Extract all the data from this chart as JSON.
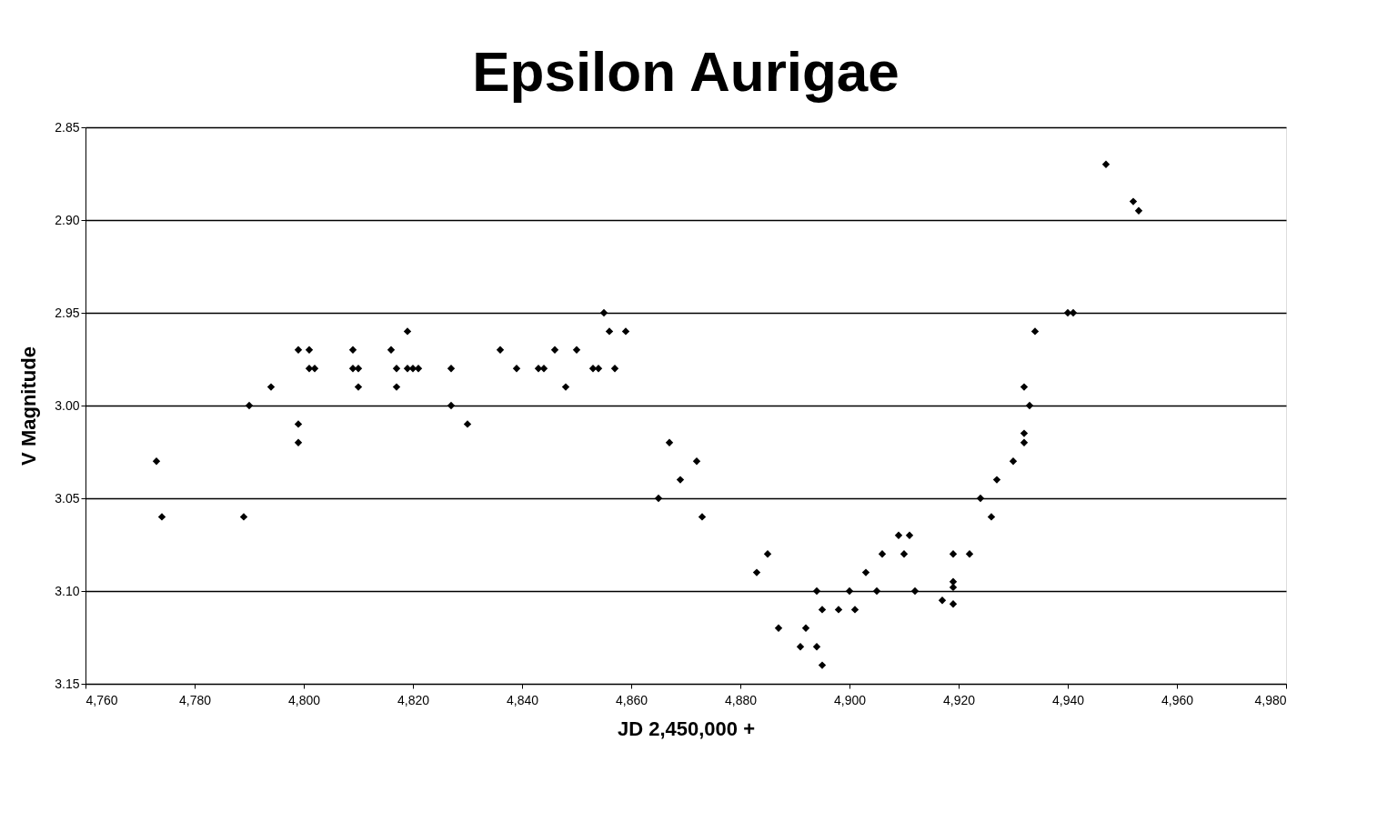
{
  "chart_data": {
    "type": "scatter",
    "title": "Epsilon Aurigae",
    "xlabel": "JD 2,450,000 +",
    "ylabel": "V Magnitude",
    "x": [
      4773,
      4774,
      4789,
      4790,
      4794,
      4799,
      4799,
      4799,
      4801,
      4801,
      4802,
      4809,
      4809,
      4810,
      4810,
      4816,
      4817,
      4817,
      4819,
      4819,
      4820,
      4821,
      4827,
      4827,
      4830,
      4836,
      4839,
      4843,
      4844,
      4846,
      4848,
      4850,
      4853,
      4854,
      4855,
      4856,
      4857,
      4859,
      4865,
      4867,
      4869,
      4872,
      4873,
      4883,
      4885,
      4887,
      4891,
      4892,
      4894,
      4894,
      4895,
      4895,
      4898,
      4900,
      4901,
      4903,
      4905,
      4906,
      4909,
      4910,
      4911,
      4912,
      4917,
      4919,
      4919,
      4919,
      4919,
      4922,
      4924,
      4926,
      4927,
      4930,
      4932,
      4932,
      4932,
      4933,
      4934,
      4940,
      4941,
      4947,
      4952,
      4953
    ],
    "series": [
      {
        "color": "#000000",
        "values": [
          3.03,
          3.06,
          3.06,
          3.0,
          2.99,
          2.97,
          3.01,
          3.02,
          2.97,
          2.98,
          2.98,
          2.97,
          2.98,
          2.98,
          2.99,
          2.97,
          2.98,
          2.99,
          2.96,
          2.98,
          2.98,
          2.98,
          2.98,
          3.0,
          3.01,
          2.97,
          2.98,
          2.98,
          2.98,
          2.97,
          2.99,
          2.97,
          2.98,
          2.98,
          2.95,
          2.96,
          2.98,
          2.96,
          3.05,
          3.02,
          3.04,
          3.03,
          3.06,
          3.09,
          3.08,
          3.12,
          3.13,
          3.12,
          3.1,
          3.13,
          3.11,
          3.14,
          3.11,
          3.1,
          3.11,
          3.09,
          3.1,
          3.08,
          3.07,
          3.08,
          3.07,
          3.1,
          3.105,
          3.107,
          3.095,
          3.098,
          3.08,
          3.08,
          3.05,
          3.06,
          3.04,
          3.03,
          3.02,
          3.015,
          2.99,
          3.0,
          2.96,
          2.95,
          2.95,
          2.87,
          2.89,
          2.895
        ]
      }
    ],
    "xlim": [
      4760,
      4980
    ],
    "xticks": [
      {
        "value": 4760,
        "label": "4,760"
      },
      {
        "value": 4780,
        "label": "4,780"
      },
      {
        "value": 4800,
        "label": "4,800"
      },
      {
        "value": 4820,
        "label": "4,820"
      },
      {
        "value": 4840,
        "label": "4,840"
      },
      {
        "value": 4860,
        "label": "4,860"
      },
      {
        "value": 4880,
        "label": "4,880"
      },
      {
        "value": 4900,
        "label": "4,900"
      },
      {
        "value": 4920,
        "label": "4,920"
      },
      {
        "value": 4940,
        "label": "4,940"
      },
      {
        "value": 4960,
        "label": "4,960"
      },
      {
        "value": 4980,
        "label": "4,980"
      }
    ],
    "ylim": [
      3.15,
      2.85
    ],
    "yticks": [
      2.85,
      {
        "value": 2.9,
        "label": "2.90"
      },
      2.95,
      {
        "value": 3.0,
        "label": "3.00"
      },
      3.05,
      {
        "value": 3.1,
        "label": "3.10"
      },
      3.15
    ],
    "grid": "y",
    "marker": "diamond"
  }
}
